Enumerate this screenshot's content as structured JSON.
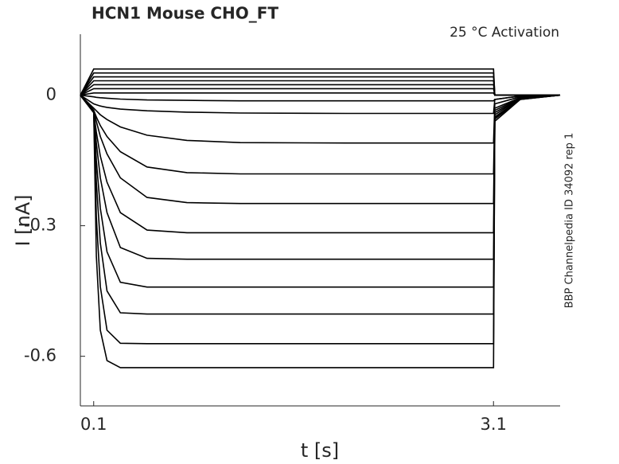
{
  "chart_data": {
    "type": "line",
    "title": "HCN1  Mouse  CHO_FT",
    "annotation": "25 °C  Activation",
    "side_note": "BBP Channelpedia ID 34092 rep 1",
    "xlabel": "t [s]",
    "ylabel": "I [nA]",
    "xlim": [
      0,
      3.6
    ],
    "ylim": [
      -0.714,
      0.14
    ],
    "xticks": [
      0.1,
      3.1
    ],
    "yticks": [
      0,
      -0.3,
      -0.6
    ],
    "x": [
      0,
      0.1,
      0.12,
      0.15,
      0.2,
      0.3,
      0.5,
      0.8,
      1.2,
      2,
      3.1,
      3.11,
      3.3,
      3.6
    ],
    "series": [
      {
        "color": "#000000",
        "values": [
          0,
          0.06,
          0.06,
          0.06,
          0.06,
          0.06,
          0.06,
          0.06,
          0.06,
          0.06,
          0.06,
          0,
          0,
          0
        ]
      },
      {
        "color": "#000000",
        "values": [
          0,
          0.051,
          0.051,
          0.051,
          0.051,
          0.051,
          0.051,
          0.051,
          0.051,
          0.051,
          0.051,
          0,
          0,
          0
        ]
      },
      {
        "color": "#000000",
        "values": [
          0,
          0.042,
          0.042,
          0.042,
          0.042,
          0.042,
          0.042,
          0.042,
          0.042,
          0.042,
          0.042,
          0,
          0,
          0
        ]
      },
      {
        "color": "#000000",
        "values": [
          0,
          0.033,
          0.033,
          0.033,
          0.033,
          0.033,
          0.033,
          0.033,
          0.033,
          0.033,
          0.033,
          0,
          0,
          0
        ]
      },
      {
        "color": "#000000",
        "values": [
          0,
          0.024,
          0.024,
          0.024,
          0.024,
          0.024,
          0.024,
          0.024,
          0.024,
          0.024,
          0.024,
          0,
          0,
          0
        ]
      },
      {
        "color": "#000000",
        "values": [
          0,
          0.015,
          0.015,
          0.015,
          0.015,
          0.015,
          0.015,
          0.015,
          0.015,
          0.015,
          0.015,
          0,
          0,
          0
        ]
      },
      {
        "color": "#000000",
        "values": [
          0,
          0.005,
          0.005,
          0.005,
          0.005,
          0.005,
          0.005,
          0.005,
          0.005,
          0.005,
          0.005,
          0,
          0,
          0
        ]
      },
      {
        "color": "#000000",
        "values": [
          0,
          -0.004,
          -0.005,
          -0.006,
          -0.007,
          -0.009,
          -0.011,
          -0.012,
          -0.013,
          -0.013,
          -0.013,
          -0.01,
          -0.002,
          0
        ]
      },
      {
        "color": "#000000",
        "values": [
          0,
          -0.02,
          -0.022,
          -0.025,
          -0.028,
          -0.032,
          -0.036,
          -0.039,
          -0.041,
          -0.042,
          -0.042,
          -0.01,
          -0.002,
          0
        ]
      },
      {
        "color": "#000000",
        "values": [
          0,
          -0.03,
          -0.036,
          -0.045,
          -0.056,
          -0.073,
          -0.092,
          -0.104,
          -0.109,
          -0.11,
          -0.11,
          -0.02,
          -0.004,
          0
        ]
      },
      {
        "color": "#000000",
        "values": [
          0,
          -0.035,
          -0.05,
          -0.07,
          -0.095,
          -0.13,
          -0.165,
          -0.178,
          -0.181,
          -0.181,
          -0.181,
          -0.03,
          -0.006,
          0
        ]
      },
      {
        "color": "#000000",
        "values": [
          0,
          -0.035,
          -0.06,
          -0.095,
          -0.135,
          -0.19,
          -0.235,
          -0.247,
          -0.249,
          -0.249,
          -0.249,
          -0.035,
          -0.007,
          0
        ]
      },
      {
        "color": "#000000",
        "values": [
          0,
          -0.04,
          -0.085,
          -0.14,
          -0.2,
          -0.27,
          -0.31,
          -0.316,
          -0.316,
          -0.316,
          -0.316,
          -0.04,
          -0.008,
          0
        ]
      },
      {
        "color": "#000000",
        "values": [
          0,
          -0.04,
          -0.11,
          -0.19,
          -0.27,
          -0.35,
          -0.375,
          -0.377,
          -0.377,
          -0.377,
          -0.377,
          -0.045,
          -0.008,
          0
        ]
      },
      {
        "color": "#000000",
        "values": [
          0,
          -0.04,
          -0.15,
          -0.26,
          -0.36,
          -0.43,
          -0.441,
          -0.441,
          -0.441,
          -0.441,
          -0.441,
          -0.05,
          -0.009,
          0
        ]
      },
      {
        "color": "#000000",
        "values": [
          0,
          -0.04,
          -0.2,
          -0.34,
          -0.45,
          -0.5,
          -0.503,
          -0.503,
          -0.503,
          -0.503,
          -0.503,
          -0.052,
          -0.009,
          0
        ]
      },
      {
        "color": "#000000",
        "values": [
          0,
          -0.04,
          -0.28,
          -0.44,
          -0.54,
          -0.57,
          -0.571,
          -0.571,
          -0.571,
          -0.571,
          -0.571,
          -0.055,
          -0.01,
          0
        ]
      },
      {
        "color": "#000000",
        "values": [
          0,
          -0.04,
          -0.37,
          -0.54,
          -0.61,
          -0.626,
          -0.626,
          -0.626,
          -0.626,
          -0.626,
          -0.626,
          -0.06,
          -0.01,
          0
        ]
      }
    ]
  }
}
